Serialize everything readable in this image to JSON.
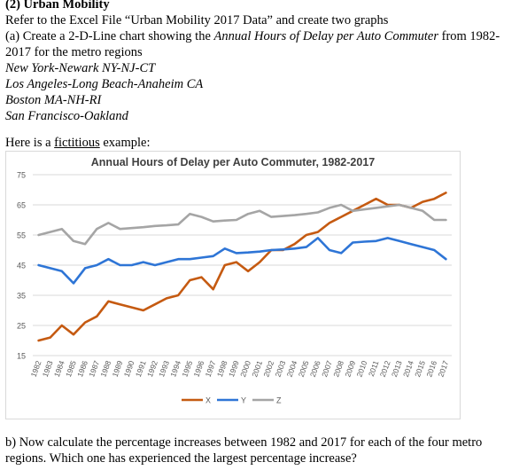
{
  "document": {
    "heading": "(2) Urban Mobility",
    "line1": "Refer to the Excel File “Urban Mobility 2017 Data” and create two graphs",
    "line2_plain": "(a) Create a 2-D-Line chart showing the ",
    "line2_italic": "Annual Hours of Delay per Auto Commuter",
    "line2_tail": " from 1982-",
    "line3": "2017 for the metro regions",
    "regions": [
      "New York-Newark NY-NJ-CT",
      "Los Angeles-Long Beach-Anaheim CA",
      "Boston MA-NH-RI",
      "San Francisco-Oakland"
    ],
    "example_prefix": "Here is a ",
    "example_word": "fictitious",
    "example_suffix": " example:",
    "partb_line1": "b) Now calculate the percentage increases between 1982 and 2017 for each of the four metro",
    "partb_line2": "regions. Which one has experienced the largest percentage increase?"
  },
  "chart_data": {
    "type": "line",
    "title": "Annual Hours of Delay per Auto  Commuter, 1982-2017",
    "xlabel": "",
    "ylabel": "",
    "ylim": [
      15,
      75
    ],
    "yticks": [
      15,
      25,
      35,
      45,
      55,
      65,
      75
    ],
    "grid": true,
    "legend_position": "bottom",
    "categories": [
      "1982",
      "1983",
      "1984",
      "1985",
      "1986",
      "1987",
      "1988",
      "1989",
      "1990",
      "1991",
      "1992",
      "1993",
      "1994",
      "1995",
      "1996",
      "1997",
      "1998",
      "1999",
      "2000",
      "2001",
      "2002",
      "2003",
      "2004",
      "2005",
      "2006",
      "2007",
      "2008",
      "2009",
      "2010",
      "2011",
      "2012",
      "2013",
      "2014",
      "2015",
      "2016",
      "2017"
    ],
    "series": [
      {
        "name": "X",
        "color": "#c55a11",
        "values": [
          20,
          21,
          25,
          22,
          26,
          28,
          33,
          32,
          31,
          30,
          32,
          34,
          35,
          40,
          41,
          37,
          45,
          46,
          43,
          46,
          50,
          50,
          52,
          55,
          56,
          59,
          61,
          63,
          65,
          67,
          65,
          65,
          64,
          66,
          67,
          69
        ]
      },
      {
        "name": "Y",
        "color": "#2e75d6",
        "values": [
          45,
          44,
          43,
          39,
          44,
          45,
          47,
          45,
          45,
          46,
          45,
          46,
          47,
          47,
          47.5,
          48,
          50.5,
          49,
          49.2,
          49.5,
          50,
          50.2,
          50.5,
          51,
          54,
          50,
          49,
          52.5,
          52.8,
          53,
          54,
          53,
          52,
          51,
          50,
          47
        ]
      },
      {
        "name": "Z",
        "color": "#a5a5a5",
        "values": [
          55,
          56,
          57,
          53,
          52,
          57,
          59,
          57,
          57.3,
          57.6,
          58,
          58.2,
          58.5,
          62,
          61,
          59.5,
          59.8,
          60,
          62,
          63,
          61,
          61.3,
          61.6,
          62,
          62.5,
          64,
          65,
          63,
          63.5,
          64,
          64.5,
          65,
          64,
          63,
          60,
          60
        ]
      }
    ]
  }
}
